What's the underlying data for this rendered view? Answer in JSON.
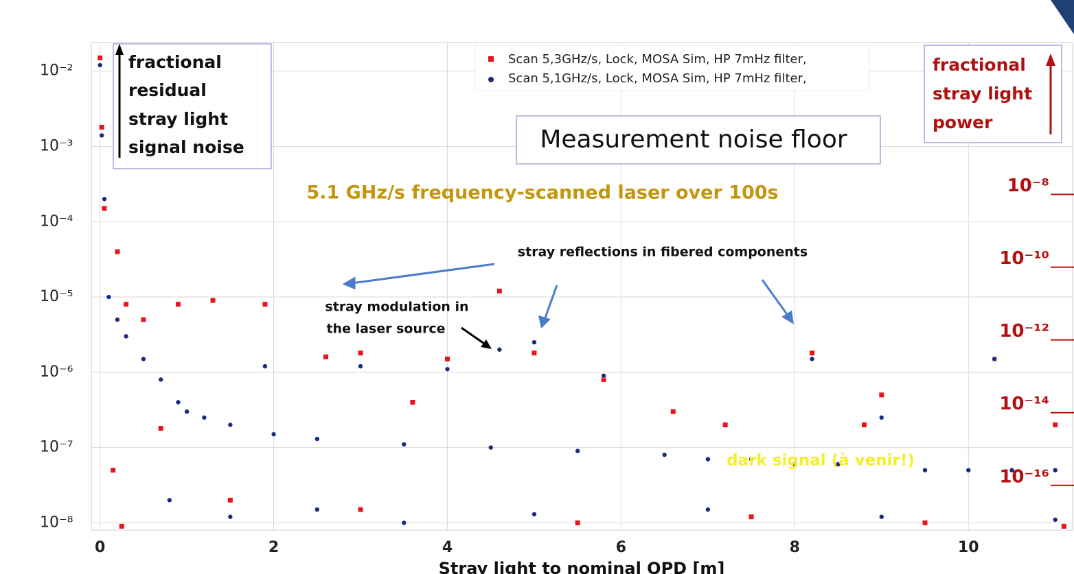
{
  "chart_data": {
    "type": "scatter",
    "x_label": "Stray light to nominal OPD [m]",
    "xlim": [
      -0.1,
      11.2
    ],
    "xticks": [
      0,
      2,
      4,
      6,
      8,
      10
    ],
    "ylim": [
      8e-09,
      0.024
    ],
    "log_y": true,
    "yticks": [
      {
        "value": 1e-08,
        "label": "10⁻⁸"
      },
      {
        "value": 1e-07,
        "label": "10⁻⁷"
      },
      {
        "value": 1e-06,
        "label": "10⁻⁶"
      },
      {
        "value": 1e-05,
        "label": "10⁻⁵"
      },
      {
        "value": 0.0001,
        "label": "10⁻⁴"
      },
      {
        "value": 0.001,
        "label": "10⁻³"
      },
      {
        "value": 0.01,
        "label": "10⁻²"
      }
    ],
    "y2lim": [
      0.00015,
      5.9e-18
    ],
    "y2ticks": [
      {
        "value": 1e-08,
        "label": "10⁻⁸"
      },
      {
        "value": 1e-10,
        "label": "10⁻¹⁰"
      },
      {
        "value": 1e-12,
        "label": "10⁻¹²"
      },
      {
        "value": 1e-14,
        "label": "10⁻¹⁴"
      },
      {
        "value": 1e-16,
        "label": "10⁻¹⁶"
      }
    ],
    "grid": true,
    "legend": "upper center",
    "series": [
      {
        "name": "Scan 5,3GHz/s, Lock, MOSA Sim, HP 7mHz filter,",
        "color": "#e8141c",
        "marker": "square",
        "x": [
          0,
          0.02,
          0.05,
          0.2,
          0.3,
          0.5,
          0.7,
          0.9,
          1.3,
          1.9,
          2.6,
          3.0,
          3.6,
          4.0,
          4.6,
          5.0,
          5.8,
          6.6,
          7.2,
          8.2,
          8.8,
          9.0,
          10.3,
          11.0,
          0.15,
          0.25,
          1.5,
          3.0,
          5.5,
          7.5,
          9.5,
          11.1
        ],
        "y": [
          0.015,
          0.0018,
          0.00015,
          4e-05,
          8e-06,
          5e-06,
          1.8e-07,
          8e-06,
          9e-06,
          8e-06,
          1.6e-06,
          1.8e-06,
          4e-07,
          1.5e-06,
          1.2e-05,
          1.8e-06,
          8e-07,
          3e-07,
          2e-07,
          1.8e-06,
          2e-07,
          5e-07,
          1.5e-06,
          2e-07,
          5e-08,
          9e-09,
          2e-08,
          1.5e-08,
          1e-08,
          1.2e-08,
          1e-08,
          9e-09
        ]
      },
      {
        "name": "Scan 5,1GHz/s, Lock, MOSA Sim, HP 7mHz filter,",
        "color": "#1a2a80",
        "marker": "circle",
        "x": [
          0,
          0.02,
          0.05,
          0.1,
          0.2,
          0.3,
          0.5,
          0.7,
          0.9,
          1.0,
          1.2,
          1.5,
          1.9,
          2.0,
          2.5,
          3.0,
          3.5,
          4.0,
          4.5,
          4.6,
          5.0,
          5.5,
          5.8,
          6.5,
          7.0,
          7.5,
          8.0,
          8.2,
          8.5,
          9.0,
          9.5,
          10.0,
          10.3,
          10.5,
          11.0,
          0.8,
          1.5,
          2.5,
          3.5,
          5.0,
          7.0,
          9.0,
          11.0
        ],
        "y": [
          0.012,
          0.0014,
          0.0002,
          1e-05,
          5e-06,
          3e-06,
          1.5e-06,
          8e-07,
          4e-07,
          3e-07,
          2.5e-07,
          2e-07,
          1.2e-06,
          1.5e-07,
          1.3e-07,
          1.2e-06,
          1.1e-07,
          1.1e-06,
          1e-07,
          2e-06,
          2.5e-06,
          9e-08,
          9e-07,
          8e-08,
          7e-08,
          7e-08,
          6e-08,
          1.5e-06,
          6e-08,
          2.5e-07,
          5e-08,
          5e-08,
          1.5e-06,
          5e-08,
          5e-08,
          2e-08,
          1.2e-08,
          1.5e-08,
          1e-08,
          1.3e-08,
          1.5e-08,
          1.2e-08,
          1.1e-08
        ]
      }
    ],
    "left_axis_note": [
      "fractional",
      "residual",
      "stray light",
      "signal noise"
    ],
    "right_axis_note": [
      "fractional",
      "stray light",
      "power"
    ],
    "annotations": [
      "Measurement noise floor",
      "5.1 GHz/s frequency-scanned laser over 100s",
      "stray reflections in fibered components",
      "stray modulation in",
      "the laser source",
      "dark signal (à venir!)"
    ]
  }
}
